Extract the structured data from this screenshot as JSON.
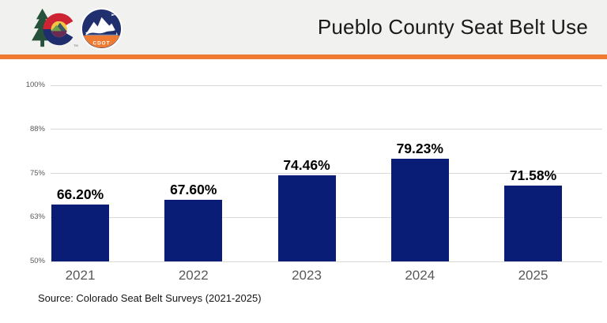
{
  "header": {
    "title": "Pueblo County Seat Belt Use",
    "accent_color": "#EE7B31",
    "logos": {
      "colorado": "colorado-state-logo",
      "cdot": "cdot-logo",
      "cdot_text": "CDOT",
      "trademark": "TM"
    }
  },
  "chart_data": {
    "type": "bar",
    "title": "Pueblo County Seat Belt Use",
    "categories": [
      "2021",
      "2022",
      "2023",
      "2024",
      "2025"
    ],
    "values": [
      66.2,
      67.6,
      74.46,
      79.23,
      71.58
    ],
    "data_labels": [
      "66.20%",
      "67.60%",
      "74.46%",
      "79.23%",
      "71.58%"
    ],
    "ylim": [
      50,
      100
    ],
    "ytick_values": [
      100,
      87.5,
      75,
      62.5,
      50
    ],
    "ytick_labels": [
      "100%",
      "88%",
      "75%",
      "63%",
      "50%"
    ],
    "xlabel": "",
    "ylabel": "",
    "grid": true,
    "legend_position": "none",
    "bar_color": "#0A1D76",
    "gridline_color": "#D9D9D9",
    "tick_color": "#595959"
  },
  "footer": {
    "source": "Source: Colorado Seat Belt Surveys (2021-2025)"
  }
}
